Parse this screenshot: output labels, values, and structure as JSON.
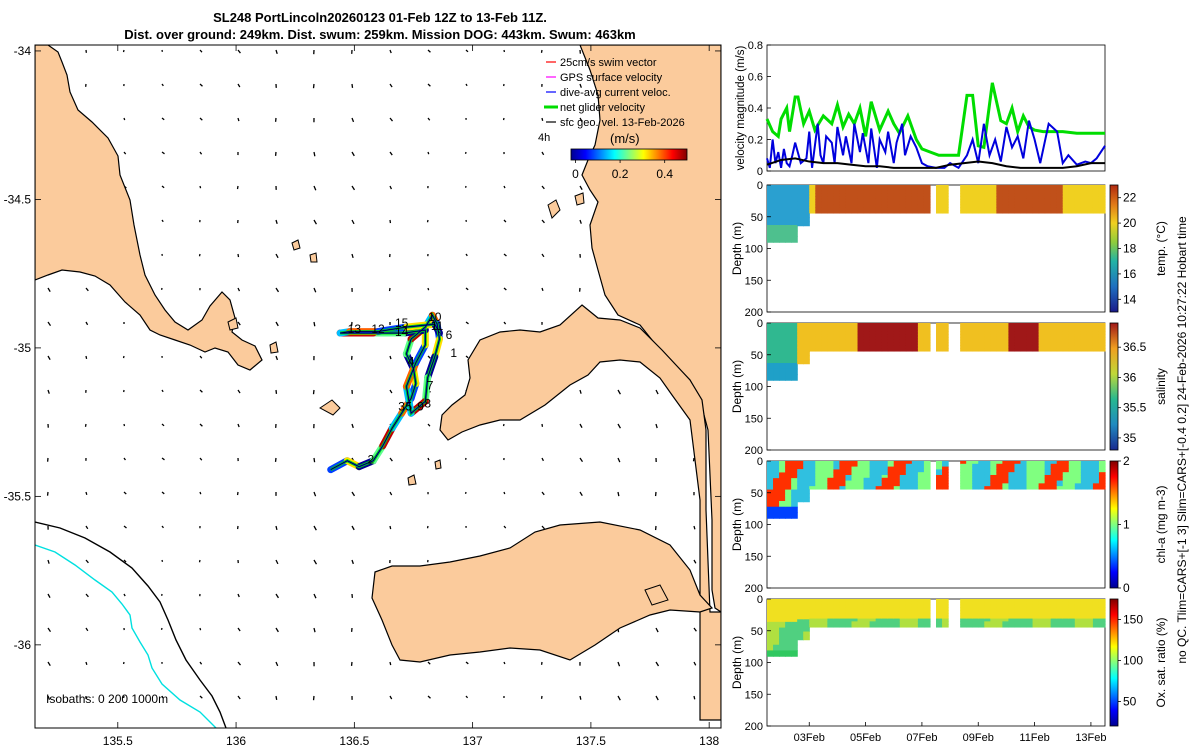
{
  "chart_data": [
    {
      "type": "map",
      "title_line1": "SL248 PortLincoln20260123 01-Feb 12Z to 13-Feb 11Z.",
      "title_line2": "Dist. over ground: 249km. Dist. swum: 259km. Mission DOG: 443km. Swum: 463km",
      "xlim": [
        135.15,
        138.05
      ],
      "ylim": [
        -36.28,
        -33.98
      ],
      "xticks": [
        135.5,
        136,
        136.5,
        137,
        137.5,
        138
      ],
      "xtick_labels": [
        "135.5",
        "136",
        "136.5",
        "137",
        "137.5",
        "138"
      ],
      "yticks": [
        -34,
        -34.5,
        -35,
        -35.5,
        -36
      ],
      "ytick_labels": [
        "-34",
        "-34.5",
        "-35",
        "-35.5",
        "-36"
      ],
      "legend": [
        {
          "label": "25cm/s swim vector",
          "color": "#ff0000"
        },
        {
          "label": "GPS surface velocity",
          "color": "#ff00ff"
        },
        {
          "label": "dive-avg current veloc.",
          "color": "#0000ff"
        },
        {
          "label": "net glider velocity",
          "color": "#00dd00"
        },
        {
          "label": "sfc geo. vel. 13-Feb-2026",
          "color": "#000000"
        }
      ],
      "legend_extra": "4h",
      "colorbar": {
        "label": "(m/s)",
        "ticks": [
          0,
          0.2,
          0.4
        ],
        "tick_labels": [
          "0",
          "0.2",
          "0.4"
        ]
      },
      "isobath_label": "Isobaths: 0   200  1000m",
      "day_labels": [
        {
          "text": "1",
          "lon": 136.92,
          "lat": -35.03
        },
        {
          "text": "2",
          "lon": 136.57,
          "lat": -35.39
        },
        {
          "text": "3",
          "lon": 136.7,
          "lat": -35.21
        },
        {
          "text": "4",
          "lon": 136.74,
          "lat": -35.06
        },
        {
          "text": "5",
          "lon": 136.73,
          "lat": -35.21
        },
        {
          "text": "6",
          "lon": 136.9,
          "lat": -34.97
        },
        {
          "text": "7",
          "lon": 136.82,
          "lat": -35.14
        },
        {
          "text": "8",
          "lon": 136.81,
          "lat": -35.2
        },
        {
          "text": "9",
          "lon": 136.78,
          "lat": -35.21
        },
        {
          "text": "10",
          "lon": 136.84,
          "lat": -34.91
        },
        {
          "text": "11",
          "lon": 136.85,
          "lat": -34.94
        },
        {
          "text": "12",
          "lon": 136.6,
          "lat": -34.95
        },
        {
          "text": "13",
          "lon": 136.5,
          "lat": -34.95
        },
        {
          "text": "14",
          "lon": 136.7,
          "lat": -34.96
        },
        {
          "text": "15",
          "lon": 136.7,
          "lat": -34.93
        }
      ],
      "track": [
        [
          136.4,
          -35.41
        ],
        [
          136.47,
          -35.38
        ],
        [
          136.52,
          -35.4
        ],
        [
          136.58,
          -35.38
        ],
        [
          136.62,
          -35.33
        ],
        [
          136.66,
          -35.27
        ],
        [
          136.7,
          -35.22
        ],
        [
          136.74,
          -35.17
        ],
        [
          136.76,
          -35.12
        ],
        [
          136.75,
          -35.07
        ],
        [
          136.72,
          -35.02
        ],
        [
          136.74,
          -34.97
        ],
        [
          136.8,
          -34.93
        ],
        [
          136.83,
          -34.89
        ],
        [
          136.85,
          -34.92
        ],
        [
          136.86,
          -34.97
        ],
        [
          136.84,
          -35.03
        ],
        [
          136.81,
          -35.1
        ],
        [
          136.8,
          -35.18
        ],
        [
          136.74,
          -35.22
        ],
        [
          136.72,
          -35.13
        ],
        [
          136.76,
          -35.05
        ],
        [
          136.8,
          -34.99
        ],
        [
          136.8,
          -34.94
        ],
        [
          136.71,
          -34.95
        ],
        [
          136.58,
          -34.95
        ],
        [
          136.44,
          -34.95
        ],
        [
          136.48,
          -34.945
        ],
        [
          136.6,
          -34.945
        ],
        [
          136.72,
          -34.93
        ],
        [
          136.84,
          -34.92
        ],
        [
          136.86,
          -34.95
        ]
      ]
    },
    {
      "type": "line",
      "ylabel": "velocity magnitude (m/s)",
      "ylim": [
        0,
        0.8
      ],
      "yticks": [
        0,
        0.2,
        0.4,
        0.6,
        0.8
      ],
      "ytick_labels": [
        "0",
        "0.2",
        "0.4",
        "0.6",
        "0.8"
      ],
      "xlim": [
        1.5,
        13.5
      ],
      "series": [
        {
          "name": "net glider velocity",
          "color": "#00dd00",
          "x": [
            1.5,
            1.7,
            1.9,
            2.0,
            2.2,
            2.3,
            2.5,
            2.6,
            2.8,
            3.0,
            3.2,
            3.5,
            3.8,
            4.0,
            4.2,
            4.4,
            4.6,
            4.8,
            5.0,
            5.2,
            5.5,
            5.8,
            6.0,
            6.2,
            6.5,
            6.8,
            7.0,
            7.3,
            7.6,
            8.0,
            8.3,
            8.6,
            8.8,
            9.0,
            9.2,
            9.5,
            9.8,
            10.0,
            10.2,
            10.4,
            10.6,
            10.8,
            11.0,
            11.3,
            11.6,
            12.0,
            12.5,
            13.0,
            13.5
          ],
          "y": [
            0.33,
            0.25,
            0.22,
            0.33,
            0.4,
            0.25,
            0.47,
            0.47,
            0.3,
            0.38,
            0.26,
            0.35,
            0.3,
            0.42,
            0.28,
            0.36,
            0.3,
            0.4,
            0.22,
            0.44,
            0.26,
            0.38,
            0.3,
            0.24,
            0.35,
            0.2,
            0.14,
            0.12,
            0.1,
            0.1,
            0.1,
            0.48,
            0.48,
            0.16,
            0.15,
            0.56,
            0.32,
            0.3,
            0.4,
            0.25,
            0.35,
            0.28,
            0.26,
            0.25,
            0.25,
            0.25,
            0.24,
            0.24,
            0.24
          ]
        },
        {
          "name": "dive-avg current veloc.",
          "color": "#0000dd",
          "x": [
            1.5,
            1.6,
            1.7,
            1.8,
            1.9,
            2.0,
            2.1,
            2.2,
            2.3,
            2.4,
            2.5,
            2.7,
            2.9,
            3.0,
            3.1,
            3.3,
            3.4,
            3.5,
            3.6,
            3.8,
            3.9,
            4.0,
            4.2,
            4.3,
            4.5,
            4.6,
            4.8,
            4.9,
            5.1,
            5.2,
            5.4,
            5.5,
            5.7,
            5.8,
            6.0,
            6.1,
            6.3,
            6.4,
            6.6,
            6.8,
            7.0,
            7.2,
            7.5,
            7.8,
            8.0,
            8.3,
            8.6,
            8.8,
            9.0,
            9.2,
            9.4,
            9.6,
            9.8,
            10.0,
            10.2,
            10.4,
            10.6,
            10.8,
            11.0,
            11.2,
            11.5,
            11.8,
            12.0,
            12.2,
            12.5,
            12.8,
            13.0,
            13.2,
            13.5
          ],
          "y": [
            0.08,
            0.02,
            0.2,
            0.05,
            0.12,
            0.02,
            0.14,
            0.05,
            0.03,
            0.1,
            0.18,
            0.05,
            0.08,
            0.25,
            0.02,
            0.3,
            0.1,
            0.05,
            0.22,
            0.18,
            0.05,
            0.28,
            0.1,
            0.22,
            0.05,
            0.3,
            0.12,
            0.24,
            0.05,
            0.27,
            0.02,
            0.2,
            0.12,
            0.25,
            0.05,
            0.18,
            0.3,
            0.1,
            0.22,
            0.15,
            0.05,
            0.03,
            0.02,
            0.02,
            0.05,
            0.02,
            0.1,
            0.2,
            0.05,
            0.3,
            0.1,
            0.2,
            0.06,
            0.28,
            0.15,
            0.22,
            0.08,
            0.32,
            0.2,
            0.05,
            0.3,
            0.25,
            0.05,
            0.1,
            0.04,
            0.06,
            0.05,
            0.08,
            0.16
          ]
        },
        {
          "name": "sfc geo. vel.",
          "color": "#000000",
          "x": [
            1.5,
            2.0,
            2.5,
            3.0,
            3.5,
            4.0,
            4.5,
            5.0,
            5.5,
            6.0,
            6.5,
            7.0,
            7.5,
            8.0,
            8.5,
            9.0,
            9.5,
            10.0,
            10.5,
            11.0,
            11.5,
            12.0,
            12.5,
            13.0,
            13.5
          ],
          "y": [
            0.04,
            0.07,
            0.08,
            0.06,
            0.05,
            0.05,
            0.04,
            0.03,
            0.03,
            0.02,
            0.02,
            0.02,
            0.02,
            0.04,
            0.05,
            0.06,
            0.05,
            0.03,
            0.02,
            0.02,
            0.02,
            0.02,
            0.03,
            0.05,
            0.05
          ]
        }
      ]
    },
    {
      "type": "heatmap",
      "ylabel": "Depth (m)",
      "clabel": "temp. (°C)",
      "ylim": [
        200,
        0
      ],
      "yticks": [
        0,
        50,
        100,
        150,
        200
      ],
      "ytick_labels": [
        "0",
        "50",
        "100",
        "150",
        "200"
      ],
      "clim": [
        13,
        23
      ],
      "cticks": [
        14,
        16,
        18,
        20,
        22
      ],
      "ctick_labels": [
        "14",
        "16",
        "18",
        "20",
        "22"
      ]
    },
    {
      "type": "heatmap",
      "ylabel": "Depth (m)",
      "clabel": "salinity",
      "ylim": [
        200,
        0
      ],
      "yticks": [
        0,
        50,
        100,
        150,
        200
      ],
      "ytick_labels": [
        "0",
        "50",
        "100",
        "150",
        "200"
      ],
      "clim": [
        34.8,
        36.9
      ],
      "cticks": [
        35,
        35.5,
        36,
        36.5
      ],
      "ctick_labels": [
        "35",
        "35.5",
        "36",
        "36.5"
      ]
    },
    {
      "type": "heatmap",
      "ylabel": "Depth (m)",
      "clabel": "chl-a (mg m-3)",
      "ylim": [
        200,
        0
      ],
      "yticks": [
        0,
        50,
        100,
        150,
        200
      ],
      "ytick_labels": [
        "0",
        "50",
        "100",
        "150",
        "200"
      ],
      "clim": [
        0,
        2
      ],
      "cticks": [
        0,
        1,
        2
      ],
      "ctick_labels": [
        "0",
        "1",
        "2"
      ]
    },
    {
      "type": "heatmap",
      "ylabel": "Depth (m)",
      "clabel": "Ox. sat. ratio (%)",
      "ylim": [
        200,
        0
      ],
      "yticks": [
        0,
        50,
        100,
        150,
        200
      ],
      "ytick_labels": [
        "0",
        "50",
        "100",
        "150",
        "200"
      ],
      "clim": [
        20,
        175
      ],
      "cticks": [
        50,
        100,
        150
      ],
      "ctick_labels": [
        "50",
        "100",
        "150"
      ],
      "xticks": [
        3,
        5,
        7,
        9,
        11,
        13
      ],
      "xtick_labels": [
        "03Feb",
        "05Feb",
        "07Feb",
        "09Feb",
        "11Feb",
        "13Feb"
      ]
    }
  ],
  "side_caption": "no QC. Tlim=CARS+[-1 3] Slim=CARS+[-0.4 0.2] 24-Feb-2026 10:27:22 Hobart time"
}
